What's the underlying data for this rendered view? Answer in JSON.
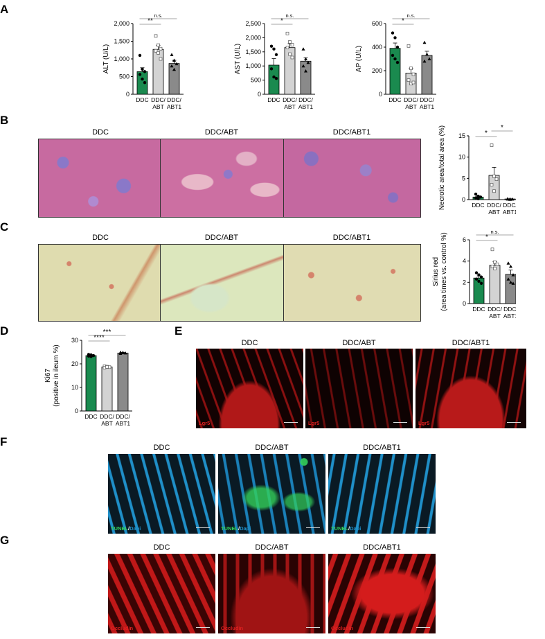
{
  "labels": {
    "a": "A",
    "b": "B",
    "c": "C",
    "d": "D",
    "e": "E",
    "f": "F",
    "g": "G"
  },
  "groups": [
    "DDC",
    "DDC/ABT",
    "DDC/ABT1"
  ],
  "stains": {
    "e": "Lgr5",
    "f_green": "TUNEL",
    "f_sep": "/",
    "f_blue": "Dapi",
    "g": "Occludin"
  },
  "colors": {
    "ddc": "#1a8a4f",
    "abt": "#d3d3d3",
    "abt1": "#8a8a8a",
    "he": "#c46a9c",
    "sirius": "#dcdcb0",
    "red": "#c01818",
    "tunel": "#33d05a",
    "dapi": "#1f8fc8"
  },
  "chart_data": [
    {
      "id": "alt",
      "type": "bar",
      "categories": [
        "DDC",
        "DDC/ABT",
        "DDC/ABT1"
      ],
      "ylabel": "ALT (U/L)",
      "ylim": [
        0,
        2000
      ],
      "ticks": [
        0,
        500,
        1000,
        1500,
        2000
      ],
      "tick_labels": [
        "0",
        "500",
        "1,000",
        "1,500",
        "2,000"
      ],
      "values": [
        640,
        1270,
        870
      ],
      "errors": [
        110,
        110,
        90
      ],
      "points": [
        [
          1100,
          710,
          640,
          560,
          430,
          330
        ],
        [
          1650,
          1390,
          1290,
          1230,
          1170,
          1000
        ],
        [
          1120,
          960,
          860,
          800,
          700
        ]
      ],
      "annotations": [
        {
          "from": 0,
          "to": 1,
          "text": "**"
        },
        {
          "from": 0,
          "to": 2,
          "text": "n.s."
        }
      ]
    },
    {
      "id": "ast",
      "type": "bar",
      "categories": [
        "DDC",
        "DDC/ABT",
        "DDC/ABT1"
      ],
      "ylabel": "AST (U/L)",
      "ylim": [
        0,
        2500
      ],
      "ticks": [
        0,
        500,
        1000,
        1500,
        2000,
        2500
      ],
      "tick_labels": [
        "0",
        "500",
        "1,000",
        "1,500",
        "2,000",
        "2,500"
      ],
      "values": [
        1030,
        1650,
        1170
      ],
      "errors": [
        230,
        140,
        120
      ],
      "points": [
        [
          1700,
          1600,
          1400,
          900,
          610,
          560
        ],
        [
          2150,
          1850,
          1750,
          1650,
          1420,
          1300
        ],
        [
          1600,
          1250,
          1120,
          1000,
          820
        ]
      ],
      "annotations": [
        {
          "from": 0,
          "to": 1,
          "text": "*"
        },
        {
          "from": 0,
          "to": 2,
          "text": "n.s."
        }
      ]
    },
    {
      "id": "ap",
      "type": "bar",
      "categories": [
        "DDC",
        "DDC/ABT",
        "DDC/ABT1"
      ],
      "ylabel": "AP (U/L)",
      "ylim": [
        0,
        600
      ],
      "ticks": [
        0,
        200,
        400,
        600
      ],
      "tick_labels": [
        "0",
        "200",
        "400",
        "600"
      ],
      "values": [
        390,
        180,
        330
      ],
      "errors": [
        45,
        40,
        35
      ],
      "points": [
        [
          520,
          480,
          400,
          330,
          300,
          270
        ],
        [
          410,
          220,
          170,
          120,
          90,
          100
        ],
        [
          440,
          340,
          300,
          280
        ]
      ],
      "annotations": [
        {
          "from": 0,
          "to": 1,
          "text": "*"
        },
        {
          "from": 0,
          "to": 2,
          "text": "n.s."
        }
      ]
    },
    {
      "id": "necrotic",
      "type": "bar",
      "categories": [
        "DDC",
        "DDC/ABT",
        "DDC/ABT1"
      ],
      "ylabel": "Necrotic area/total area (%)",
      "ylim": [
        0,
        15
      ],
      "ticks": [
        0,
        5,
        10,
        15
      ],
      "tick_labels": [
        "0",
        "5",
        "10",
        "15"
      ],
      "values": [
        0.6,
        5.7,
        0.15
      ],
      "errors": [
        0.25,
        1.9,
        0.05
      ],
      "points": [
        [
          1.3,
          0.8,
          0.6,
          0.4,
          0.2
        ],
        [
          12.8,
          5.5,
          4.8,
          3.5,
          2.0
        ],
        [
          0.2,
          0.15,
          0.1,
          0.1,
          0.05
        ]
      ],
      "annotations": [
        {
          "from": 0,
          "to": 1,
          "text": "*"
        },
        {
          "from": 1,
          "to": 2,
          "text": "*"
        }
      ]
    },
    {
      "id": "sirius",
      "type": "bar",
      "categories": [
        "DDC",
        "DDC/ABT",
        "DDC/ABT1"
      ],
      "ylabel": "Sirius red",
      "ylabel2": "(area times vs. control %)",
      "ylim": [
        0,
        6
      ],
      "ticks": [
        0,
        2,
        4,
        6
      ],
      "tick_labels": [
        "0",
        "2",
        "4",
        "6"
      ],
      "values": [
        2.4,
        3.6,
        2.75
      ],
      "errors": [
        0.2,
        0.35,
        0.4
      ],
      "points": [
        [
          2.9,
          2.7,
          2.5,
          2.3,
          2.1,
          1.9
        ],
        [
          5.1,
          3.9,
          3.7,
          3.5,
          3.3
        ],
        [
          3.8,
          3.5,
          2.7,
          2.3,
          2.0,
          1.9
        ]
      ],
      "annotations": [
        {
          "from": 0,
          "to": 1,
          "text": "*"
        },
        {
          "from": 0,
          "to": 2,
          "text": "n.s."
        }
      ]
    },
    {
      "id": "ki67",
      "type": "bar",
      "categories": [
        "DDC",
        "DDC/ABT",
        "DDC/ABT1"
      ],
      "ylabel": "Ki67",
      "ylabel2": "(positive in ileum %)",
      "ylim": [
        0,
        30
      ],
      "ticks": [
        0,
        10,
        20,
        30
      ],
      "tick_labels": [
        "0",
        "10",
        "20",
        "30"
      ],
      "values": [
        23.5,
        18.7,
        24.6
      ],
      "errors": [
        0.3,
        0.3,
        0.3
      ],
      "points": [
        [
          24.0,
          23.8,
          23.5,
          23.3,
          23.1
        ],
        [
          19.0,
          18.8,
          18.6,
          18.4,
          18.7
        ],
        [
          24.9,
          24.7,
          24.6,
          24.4,
          24.8
        ]
      ],
      "annotations": [
        {
          "from": 0,
          "to": 1,
          "text": "****"
        },
        {
          "from": 0,
          "to": 2,
          "text": "***"
        }
      ]
    }
  ]
}
